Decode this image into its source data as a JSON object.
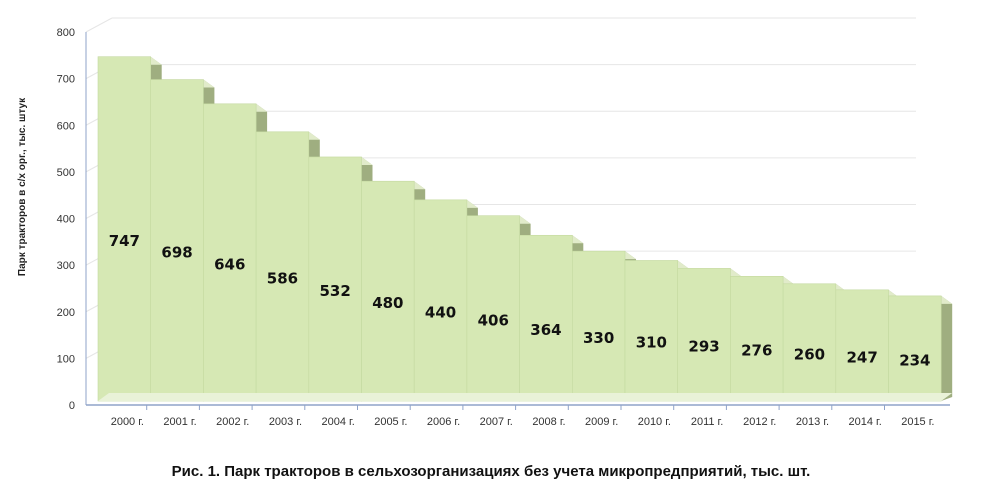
{
  "caption": "Рис. 1. Парк тракторов в сельхозорганизациях без учета микропредприятий, тыс. шт.",
  "chart_data": {
    "type": "bar",
    "title": "",
    "xlabel": "",
    "ylabel": "Парк тракторов в с/х орг., тыс. штук",
    "ylim": [
      0,
      800
    ],
    "yticks": [
      0,
      100,
      200,
      300,
      400,
      500,
      600,
      700,
      800
    ],
    "grid": true,
    "categories": [
      "2000 г.",
      "2001 г.",
      "2002 г.",
      "2003 г.",
      "2004 г.",
      "2005 г.",
      "2006 г.",
      "2007 г.",
      "2008 г.",
      "2009 г.",
      "2010 г.",
      "2011 г.",
      "2012 г.",
      "2013 г.",
      "2014 г.",
      "2015 г."
    ],
    "values": [
      747,
      698,
      646,
      586,
      532,
      480,
      440,
      406,
      364,
      330,
      310,
      293,
      276,
      260,
      247,
      234
    ],
    "colors": {
      "bar_front": "#d6e8b4",
      "bar_side": "#9fae80",
      "bar_top": "#e8f2d2",
      "grid": "#e6e6e6",
      "axis": "#8fa3c9"
    }
  }
}
